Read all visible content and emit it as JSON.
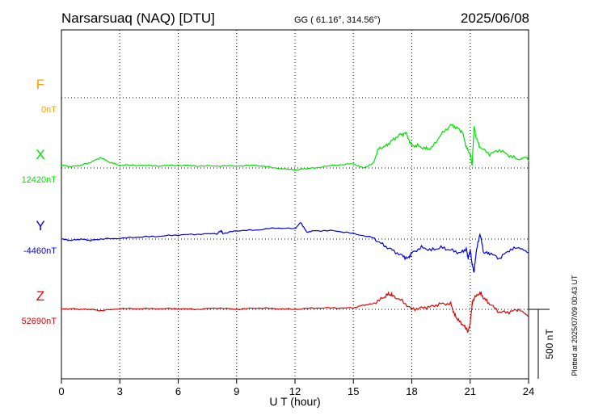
{
  "header": {
    "station": "Narsarsuaq (NAQ)  [DTU]",
    "coords": "GG ( 61.16°, 314.56°)",
    "date": "2025/06/08"
  },
  "footer": {
    "plotted": "Plotted at 2025/07/09 00:43 UT"
  },
  "chart_data": {
    "type": "line",
    "xlabel": "U T (hour)",
    "xlim": [
      0,
      24
    ],
    "xticks": [
      0,
      3,
      6,
      9,
      12,
      15,
      18,
      21,
      24
    ],
    "scale_bar": {
      "label": "500 nT",
      "value_nT": 500
    },
    "colors": {
      "F": "#f5a000",
      "X": "#00e000",
      "Y": "#0000e0",
      "Z": "#e00000"
    },
    "channels": [
      {
        "name": "F",
        "baseline_label": "0nT",
        "values": []
      },
      {
        "name": "X",
        "baseline_label": "12420nT",
        "x": [
          0,
          0.5,
          1,
          1.5,
          2,
          2.5,
          3,
          4,
          5,
          6,
          7,
          8,
          9,
          10,
          11,
          12,
          12.5,
          13,
          14,
          15,
          15.5,
          16,
          16.3,
          16.7,
          17,
          17.4,
          17.7,
          18,
          18.3,
          18.7,
          19,
          19.5,
          20,
          20.3,
          20.6,
          20.8,
          21,
          21.1,
          21.2,
          21.3,
          21.5,
          22,
          22.5,
          23,
          23.5,
          23.9,
          24
        ],
        "values": [
          20,
          10,
          20,
          40,
          75,
          40,
          20,
          20,
          15,
          20,
          15,
          15,
          15,
          20,
          0,
          -15,
          -5,
          0,
          20,
          30,
          0,
          30,
          140,
          160,
          200,
          240,
          250,
          160,
          160,
          140,
          140,
          240,
          310,
          290,
          260,
          150,
          100,
          20,
          300,
          220,
          150,
          100,
          130,
          90,
          60,
          80,
          50
        ]
      },
      {
        "name": "Y",
        "baseline_label": "-4460nT",
        "x": [
          0,
          0.5,
          1,
          1.5,
          2,
          3,
          4,
          5,
          6,
          7,
          8,
          8.2,
          8.3,
          9,
          10,
          11,
          12,
          12.3,
          12.6,
          13,
          14,
          15,
          16,
          16.5,
          17,
          17.5,
          17.8,
          18,
          18.5,
          19,
          19.5,
          20,
          20.5,
          20.8,
          20.9,
          21,
          21.1,
          21.2,
          21.3,
          21.5,
          21.7,
          22,
          22.5,
          23,
          23.5,
          24
        ],
        "values": [
          0,
          -10,
          0,
          -10,
          0,
          5,
          15,
          20,
          30,
          35,
          40,
          60,
          40,
          60,
          65,
          80,
          75,
          120,
          50,
          60,
          60,
          40,
          10,
          -40,
          -80,
          -120,
          -140,
          -100,
          -60,
          -80,
          -60,
          -80,
          -100,
          -70,
          -140,
          -80,
          -180,
          -240,
          -100,
          40,
          -100,
          -100,
          -140,
          -80,
          -60,
          -100
        ]
      },
      {
        "name": "Z",
        "baseline_label": "52690nT",
        "x": [
          0,
          0.5,
          1,
          1.5,
          2,
          3,
          4,
          5,
          6,
          7,
          8,
          9,
          10,
          11,
          12,
          13,
          14,
          15,
          15.5,
          16,
          16.5,
          16.8,
          17,
          17.5,
          18,
          18.5,
          19,
          19.5,
          20,
          20.2,
          20.4,
          20.7,
          20.8,
          20.9,
          21,
          21.1,
          21.2,
          21.5,
          21.7,
          22,
          22.5,
          23,
          23.5,
          24
        ],
        "values": [
          0,
          5,
          0,
          0,
          -10,
          5,
          5,
          5,
          5,
          0,
          10,
          0,
          10,
          5,
          0,
          10,
          10,
          10,
          30,
          40,
          80,
          110,
          100,
          60,
          0,
          10,
          20,
          40,
          40,
          -40,
          -80,
          -120,
          -140,
          -160,
          -100,
          40,
          80,
          120,
          80,
          40,
          -20,
          -20,
          0,
          -50
        ]
      }
    ]
  }
}
